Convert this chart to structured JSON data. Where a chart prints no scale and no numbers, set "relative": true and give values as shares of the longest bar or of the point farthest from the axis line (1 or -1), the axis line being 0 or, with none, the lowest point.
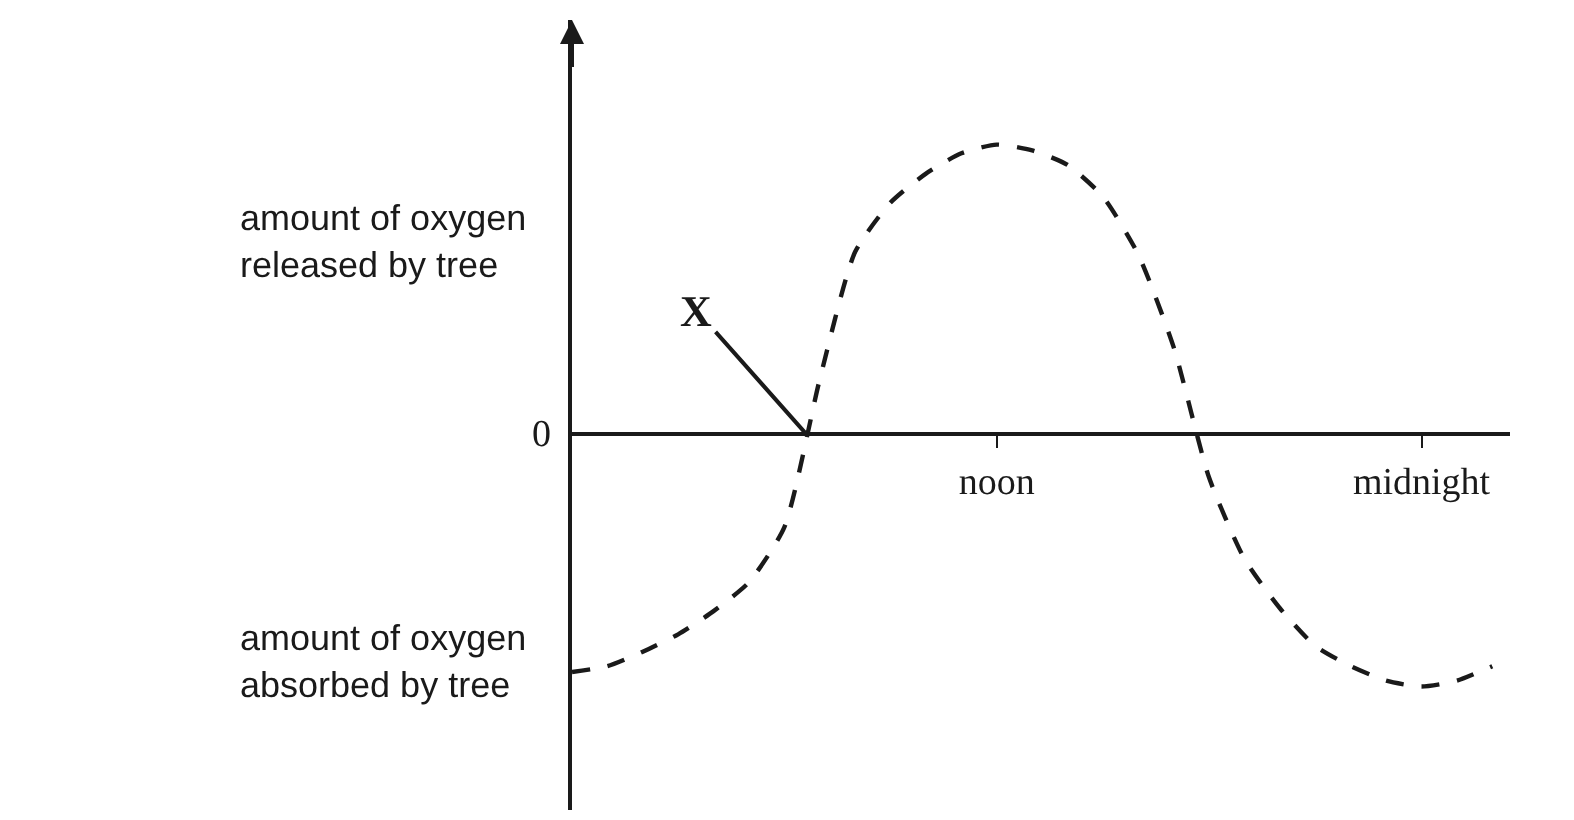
{
  "chart_data": {
    "type": "line",
    "relative": true,
    "categories": [
      null,
      null,
      null,
      null,
      null,
      null,
      null,
      null,
      null,
      null,
      null,
      null,
      "noon",
      null,
      null,
      null,
      null,
      null,
      null,
      null,
      null,
      null,
      null,
      null,
      "midnight",
      null,
      null
    ],
    "series": [
      {
        "color": "#1a1a1a",
        "values": [
          -0.82,
          -0.8,
          -0.75,
          -0.69,
          -0.61,
          -0.51,
          -0.32,
          0.19,
          0.63,
          0.8,
          0.9,
          0.97,
          1,
          0.98,
          0.93,
          0.82,
          0.62,
          0.3,
          -0.15,
          -0.43,
          -0.6,
          -0.73,
          -0.8,
          -0.85,
          -0.87,
          -0.85,
          -0.8
        ]
      }
    ],
    "annotations": [
      "amount of oxygen\nreleased by tree",
      "amount of oxygen\nabsorbed by tree",
      "0",
      "X"
    ],
    "line_style": "dashed",
    "marker": "none"
  }
}
